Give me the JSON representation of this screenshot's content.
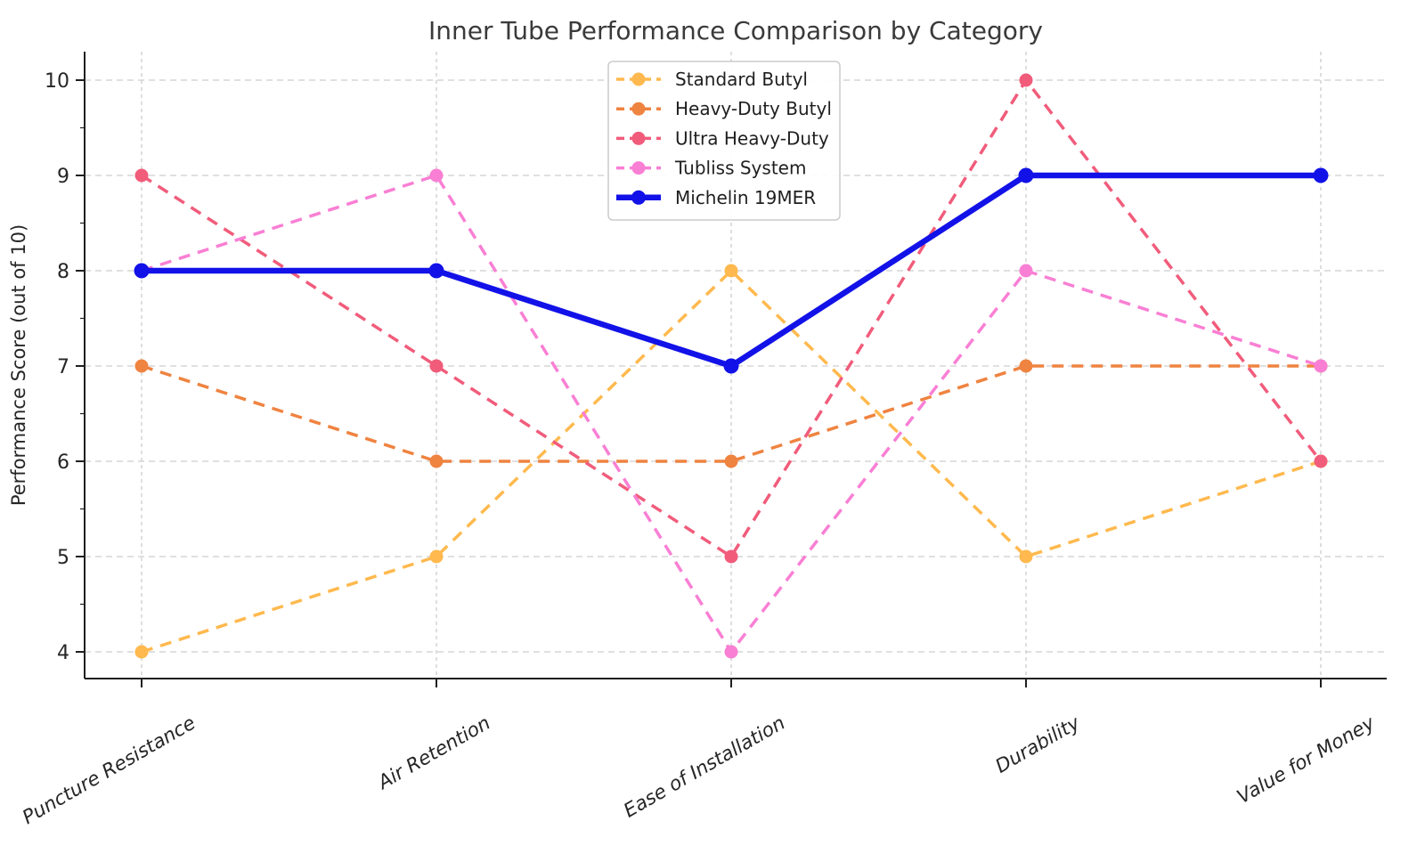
{
  "background": "#ffffff",
  "chart_data": {
    "type": "line",
    "title": "Inner Tube Performance Comparison by Category",
    "ylabel": "Performance Score (out of 10)",
    "xlabel": "",
    "categories": [
      "Puncture Resistance",
      "Air Retention",
      "Ease of Installation",
      "Durability",
      "Value for Money"
    ],
    "yticks": [
      4,
      5,
      6,
      7,
      8,
      9,
      10
    ],
    "ylim": [
      3.7,
      10.3
    ],
    "grid": true,
    "legend_position": "upper center",
    "colors": {
      "grid": "#cdcdcd",
      "spine": "#1f1f1f",
      "title_text": "#3a3a3a",
      "tick_text": "#262626",
      "legend_border": "#cccccc"
    },
    "series": [
      {
        "name": "Standard Butyl",
        "color": "#FFB94E",
        "style": "dashed",
        "values": [
          4,
          5,
          8,
          5,
          6
        ]
      },
      {
        "name": "Heavy-Duty Butyl",
        "color": "#EF8340",
        "style": "dashed",
        "values": [
          7,
          6,
          6,
          7,
          7
        ]
      },
      {
        "name": "Ultra Heavy-Duty",
        "color": "#F15C7B",
        "style": "dashed",
        "values": [
          9,
          7,
          5,
          10,
          6
        ]
      },
      {
        "name": "Tubliss System",
        "color": "#F97FD4",
        "style": "dashed",
        "values": [
          8,
          9,
          4,
          8,
          7
        ]
      },
      {
        "name": "Michelin 19MER",
        "color": "#1212E8",
        "style": "solid",
        "values": [
          8,
          8,
          7,
          9,
          9
        ]
      }
    ]
  }
}
